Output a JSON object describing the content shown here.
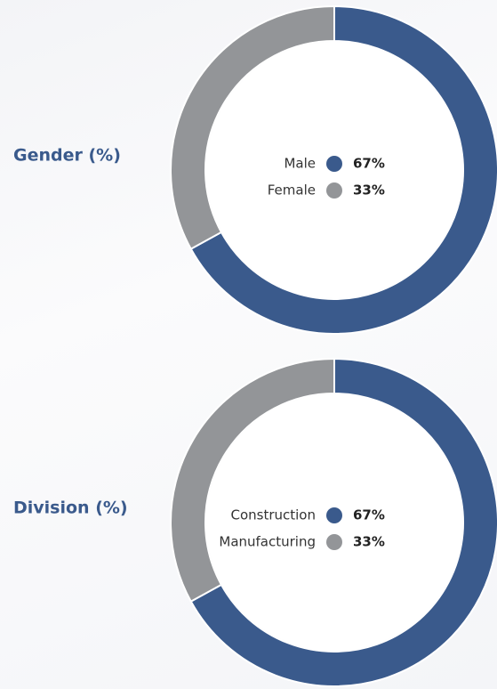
{
  "chart_data": [
    {
      "type": "pie",
      "title": "Gender (%)",
      "categories": [
        "Male",
        "Female"
      ],
      "values": [
        67,
        33
      ],
      "value_labels": [
        "67%",
        "33%"
      ],
      "colors": [
        "#3a5a8c",
        "#939598"
      ]
    },
    {
      "type": "pie",
      "title": "Division (%)",
      "categories": [
        "Construction",
        "Manufacturing"
      ],
      "values": [
        67,
        33
      ],
      "value_labels": [
        "67%",
        "33%"
      ],
      "colors": [
        "#3a5a8c",
        "#939598"
      ]
    }
  ]
}
